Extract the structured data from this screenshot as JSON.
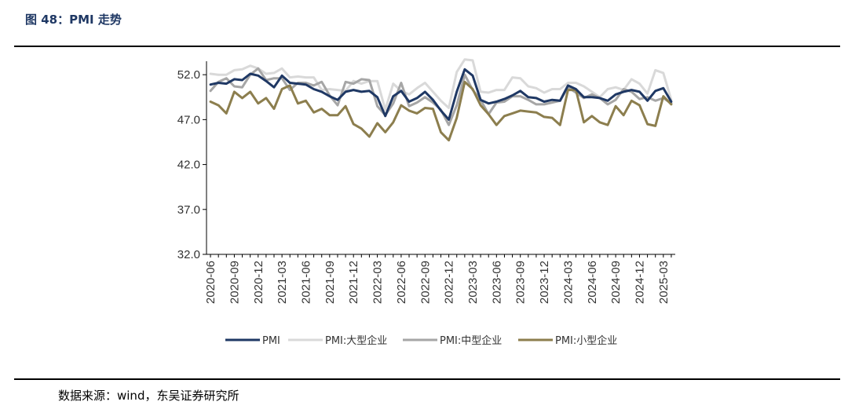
{
  "header": {
    "figure_title": "图 48：PMI 走势"
  },
  "footer": {
    "source": "数据来源：wind，东吴证券研究所"
  },
  "chart_data": {
    "type": "line",
    "title": "",
    "xlabel": "",
    "ylabel": "",
    "ylim": [
      32.0,
      53.5
    ],
    "yticks": [
      "32.0",
      "37.0",
      "42.0",
      "47.0",
      "52.0"
    ],
    "xticks": [
      "2020-06",
      "2020-09",
      "2020-12",
      "2021-03",
      "2021-06",
      "2021-09",
      "2021-12",
      "2022-03",
      "2022-06",
      "2022-09",
      "2022-12",
      "2023-03",
      "2023-06",
      "2023-09",
      "2023-12",
      "2024-03",
      "2024-06",
      "2024-09",
      "2024-12",
      "2025-03"
    ],
    "x": [
      "2020-06",
      "2020-07",
      "2020-08",
      "2020-09",
      "2020-10",
      "2020-11",
      "2020-12",
      "2021-01",
      "2021-02",
      "2021-03",
      "2021-04",
      "2021-05",
      "2021-06",
      "2021-07",
      "2021-08",
      "2021-09",
      "2021-10",
      "2021-11",
      "2021-12",
      "2022-01",
      "2022-02",
      "2022-03",
      "2022-04",
      "2022-05",
      "2022-06",
      "2022-07",
      "2022-08",
      "2022-09",
      "2022-10",
      "2022-11",
      "2022-12",
      "2023-01",
      "2023-02",
      "2023-03",
      "2023-04",
      "2023-05",
      "2023-06",
      "2023-07",
      "2023-08",
      "2023-09",
      "2023-10",
      "2023-11",
      "2023-12",
      "2024-01",
      "2024-02",
      "2024-03",
      "2024-04",
      "2024-05",
      "2024-06",
      "2024-07",
      "2024-08",
      "2024-09",
      "2024-10",
      "2024-11",
      "2024-12",
      "2025-01",
      "2025-02",
      "2025-03",
      "2025-04"
    ],
    "series": [
      {
        "name": "PMI",
        "color": "#1f3864",
        "width": 3,
        "values": [
          50.9,
          51.1,
          51.0,
          51.5,
          51.4,
          52.1,
          51.9,
          51.3,
          50.6,
          51.9,
          51.1,
          51.0,
          50.9,
          50.4,
          50.1,
          49.6,
          49.2,
          50.1,
          50.3,
          50.1,
          50.2,
          49.5,
          47.4,
          49.6,
          50.2,
          49.0,
          49.4,
          50.1,
          49.2,
          48.0,
          47.0,
          50.1,
          52.6,
          51.9,
          49.2,
          48.8,
          49.0,
          49.3,
          49.7,
          50.2,
          49.5,
          49.4,
          49.0,
          49.2,
          49.1,
          50.8,
          50.4,
          49.5,
          49.5,
          49.4,
          49.1,
          49.8,
          50.1,
          50.3,
          50.1,
          49.1,
          50.2,
          50.5,
          49.0
        ]
      },
      {
        "name": "PMI:大型企业",
        "color": "#d9d9d9",
        "width": 3,
        "values": [
          52.1,
          52.0,
          52.0,
          52.5,
          52.6,
          53.0,
          52.7,
          52.1,
          52.2,
          52.7,
          51.7,
          51.8,
          51.7,
          51.7,
          50.3,
          50.4,
          50.3,
          50.2,
          51.3,
          51.0,
          51.3,
          51.3,
          48.1,
          51.0,
          50.2,
          49.8,
          50.5,
          51.1,
          50.1,
          49.1,
          48.3,
          52.3,
          53.7,
          53.6,
          50.1,
          50.0,
          50.3,
          50.3,
          51.7,
          51.6,
          50.7,
          50.5,
          50.0,
          50.4,
          50.4,
          51.1,
          51.1,
          50.7,
          50.1,
          49.5,
          50.4,
          50.6,
          50.3,
          51.5,
          51.0,
          49.9,
          52.5,
          52.2,
          49.2
        ]
      },
      {
        "name": "PMI:中型企业",
        "color": "#a6a6a6",
        "width": 3,
        "values": [
          50.2,
          51.2,
          51.6,
          50.7,
          50.6,
          52.0,
          52.7,
          51.4,
          51.6,
          51.6,
          50.3,
          51.1,
          51.1,
          50.8,
          51.2,
          49.7,
          48.6,
          51.2,
          51.0,
          51.5,
          51.4,
          48.5,
          47.5,
          48.8,
          51.1,
          48.5,
          48.9,
          49.5,
          48.9,
          48.1,
          46.4,
          48.6,
          52.0,
          50.3,
          49.2,
          47.6,
          48.9,
          49.0,
          49.6,
          49.6,
          49.2,
          48.7,
          48.7,
          48.9,
          49.1,
          50.6,
          50.0,
          49.4,
          49.8,
          49.4,
          48.7,
          49.2,
          50.4,
          50.1,
          49.3,
          49.5,
          49.1,
          49.4,
          48.8
        ]
      },
      {
        "name": "PMI:小型企业",
        "color": "#8c7e4e",
        "width": 3,
        "values": [
          49.0,
          48.6,
          47.7,
          50.1,
          49.4,
          50.1,
          48.8,
          49.4,
          48.2,
          50.4,
          50.8,
          48.8,
          49.1,
          47.8,
          48.2,
          47.5,
          47.5,
          48.5,
          46.5,
          46.0,
          45.1,
          46.6,
          45.6,
          46.7,
          48.6,
          48.0,
          47.7,
          48.3,
          48.2,
          45.6,
          44.7,
          47.2,
          51.2,
          50.4,
          48.6,
          47.6,
          46.4,
          47.4,
          47.7,
          48.0,
          47.9,
          47.8,
          47.3,
          47.2,
          46.4,
          50.3,
          50.3,
          46.7,
          47.4,
          46.7,
          46.4,
          48.5,
          47.5,
          49.1,
          48.6,
          46.5,
          46.3,
          49.6,
          48.7
        ]
      }
    ],
    "grid": false,
    "legend": "bottom"
  }
}
